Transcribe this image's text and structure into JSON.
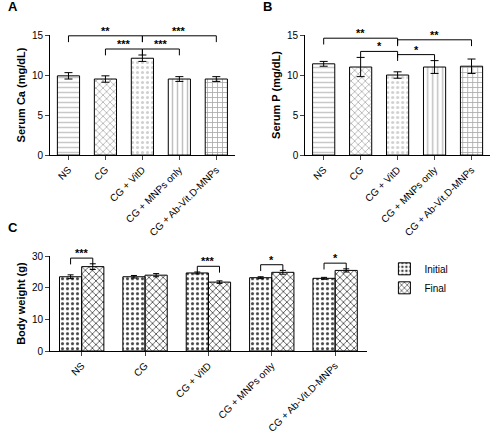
{
  "chart_data": [
    {
      "type": "bar",
      "panel_label": "A",
      "y_label": "Serum Ca (mg/dL)",
      "categories": [
        "NS",
        "CG",
        "CG + VitD",
        "CG + MNPs only",
        "CG + Ab-Vit.D-MNPs"
      ],
      "values": [
        9.9,
        9.5,
        12.1,
        9.5,
        9.5
      ],
      "errors": [
        0.4,
        0.4,
        0.4,
        0.3,
        0.3
      ],
      "colors": [
        "#c8c8c8",
        "#b0b0b0",
        "#d0d0d0",
        "#c0c0c0",
        "#a8a8a8"
      ],
      "ylim": [
        0,
        15
      ],
      "yticks": [
        0,
        5,
        10,
        15
      ],
      "comparisons": [
        {
          "from": "NS",
          "to": "CG + VitD",
          "label": "**"
        },
        {
          "from": "CG",
          "to": "CG + VitD",
          "label": "***"
        },
        {
          "from": "CG + VitD",
          "to": "CG + MNPs only",
          "label": "***"
        },
        {
          "from": "CG + VitD",
          "to": "CG + Ab-Vit.D-MNPs",
          "label": "***"
        }
      ]
    },
    {
      "type": "bar",
      "panel_label": "B",
      "y_label": "Serum P (mg/dL)",
      "categories": [
        "NS",
        "CG",
        "CG + VitD",
        "CG + MNPs only",
        "CG + Ab-Vit.D-MNPs"
      ],
      "values": [
        11.4,
        11.0,
        10.0,
        11.0,
        11.1
      ],
      "errors": [
        0.3,
        1.2,
        0.4,
        0.8,
        0.9
      ],
      "colors": [
        "#c8c8c8",
        "#b0b0b0",
        "#d0d0d0",
        "#c0c0c0",
        "#a8a8a8"
      ],
      "ylim": [
        0,
        15
      ],
      "yticks": [
        0,
        5,
        10,
        15
      ],
      "comparisons": [
        {
          "from": "NS",
          "to": "CG + VitD",
          "label": "**"
        },
        {
          "from": "CG",
          "to": "CG + VitD",
          "label": "*"
        },
        {
          "from": "CG + VitD",
          "to": "CG + MNPs only",
          "label": "*"
        },
        {
          "from": "CG + VitD",
          "to": "CG + Ab-Vit.D-MNPs",
          "label": "**"
        }
      ]
    },
    {
      "type": "bar",
      "panel_label": "C",
      "y_label": "Body weight (g)",
      "categories": [
        "NS",
        "CG",
        "CG + VitD",
        "CG + MNPs only",
        "CG + Ab-Vit.D-MNPs"
      ],
      "series": [
        {
          "name": "Initial",
          "color": "#bdbdbd",
          "values": [
            23.5,
            23.5,
            24.7,
            23.2,
            23.0
          ],
          "errors": [
            0.6,
            0.4,
            0.3,
            0.3,
            0.3
          ]
        },
        {
          "name": "Final",
          "color": "#d9d9d9",
          "values": [
            26.7,
            24.0,
            21.8,
            24.9,
            25.5
          ],
          "errors": [
            0.9,
            0.5,
            0.4,
            0.6,
            0.5
          ]
        }
      ],
      "ylim": [
        0,
        30
      ],
      "yticks": [
        0,
        10,
        20,
        30
      ],
      "legend": "right",
      "comparisons": [
        {
          "category": "NS",
          "label": "***"
        },
        {
          "category": "CG + VitD",
          "label": "***"
        },
        {
          "category": "CG + MNPs only",
          "label": "*"
        },
        {
          "category": "CG + Ab-Vit.D-MNPs",
          "label": "*"
        }
      ]
    }
  ]
}
